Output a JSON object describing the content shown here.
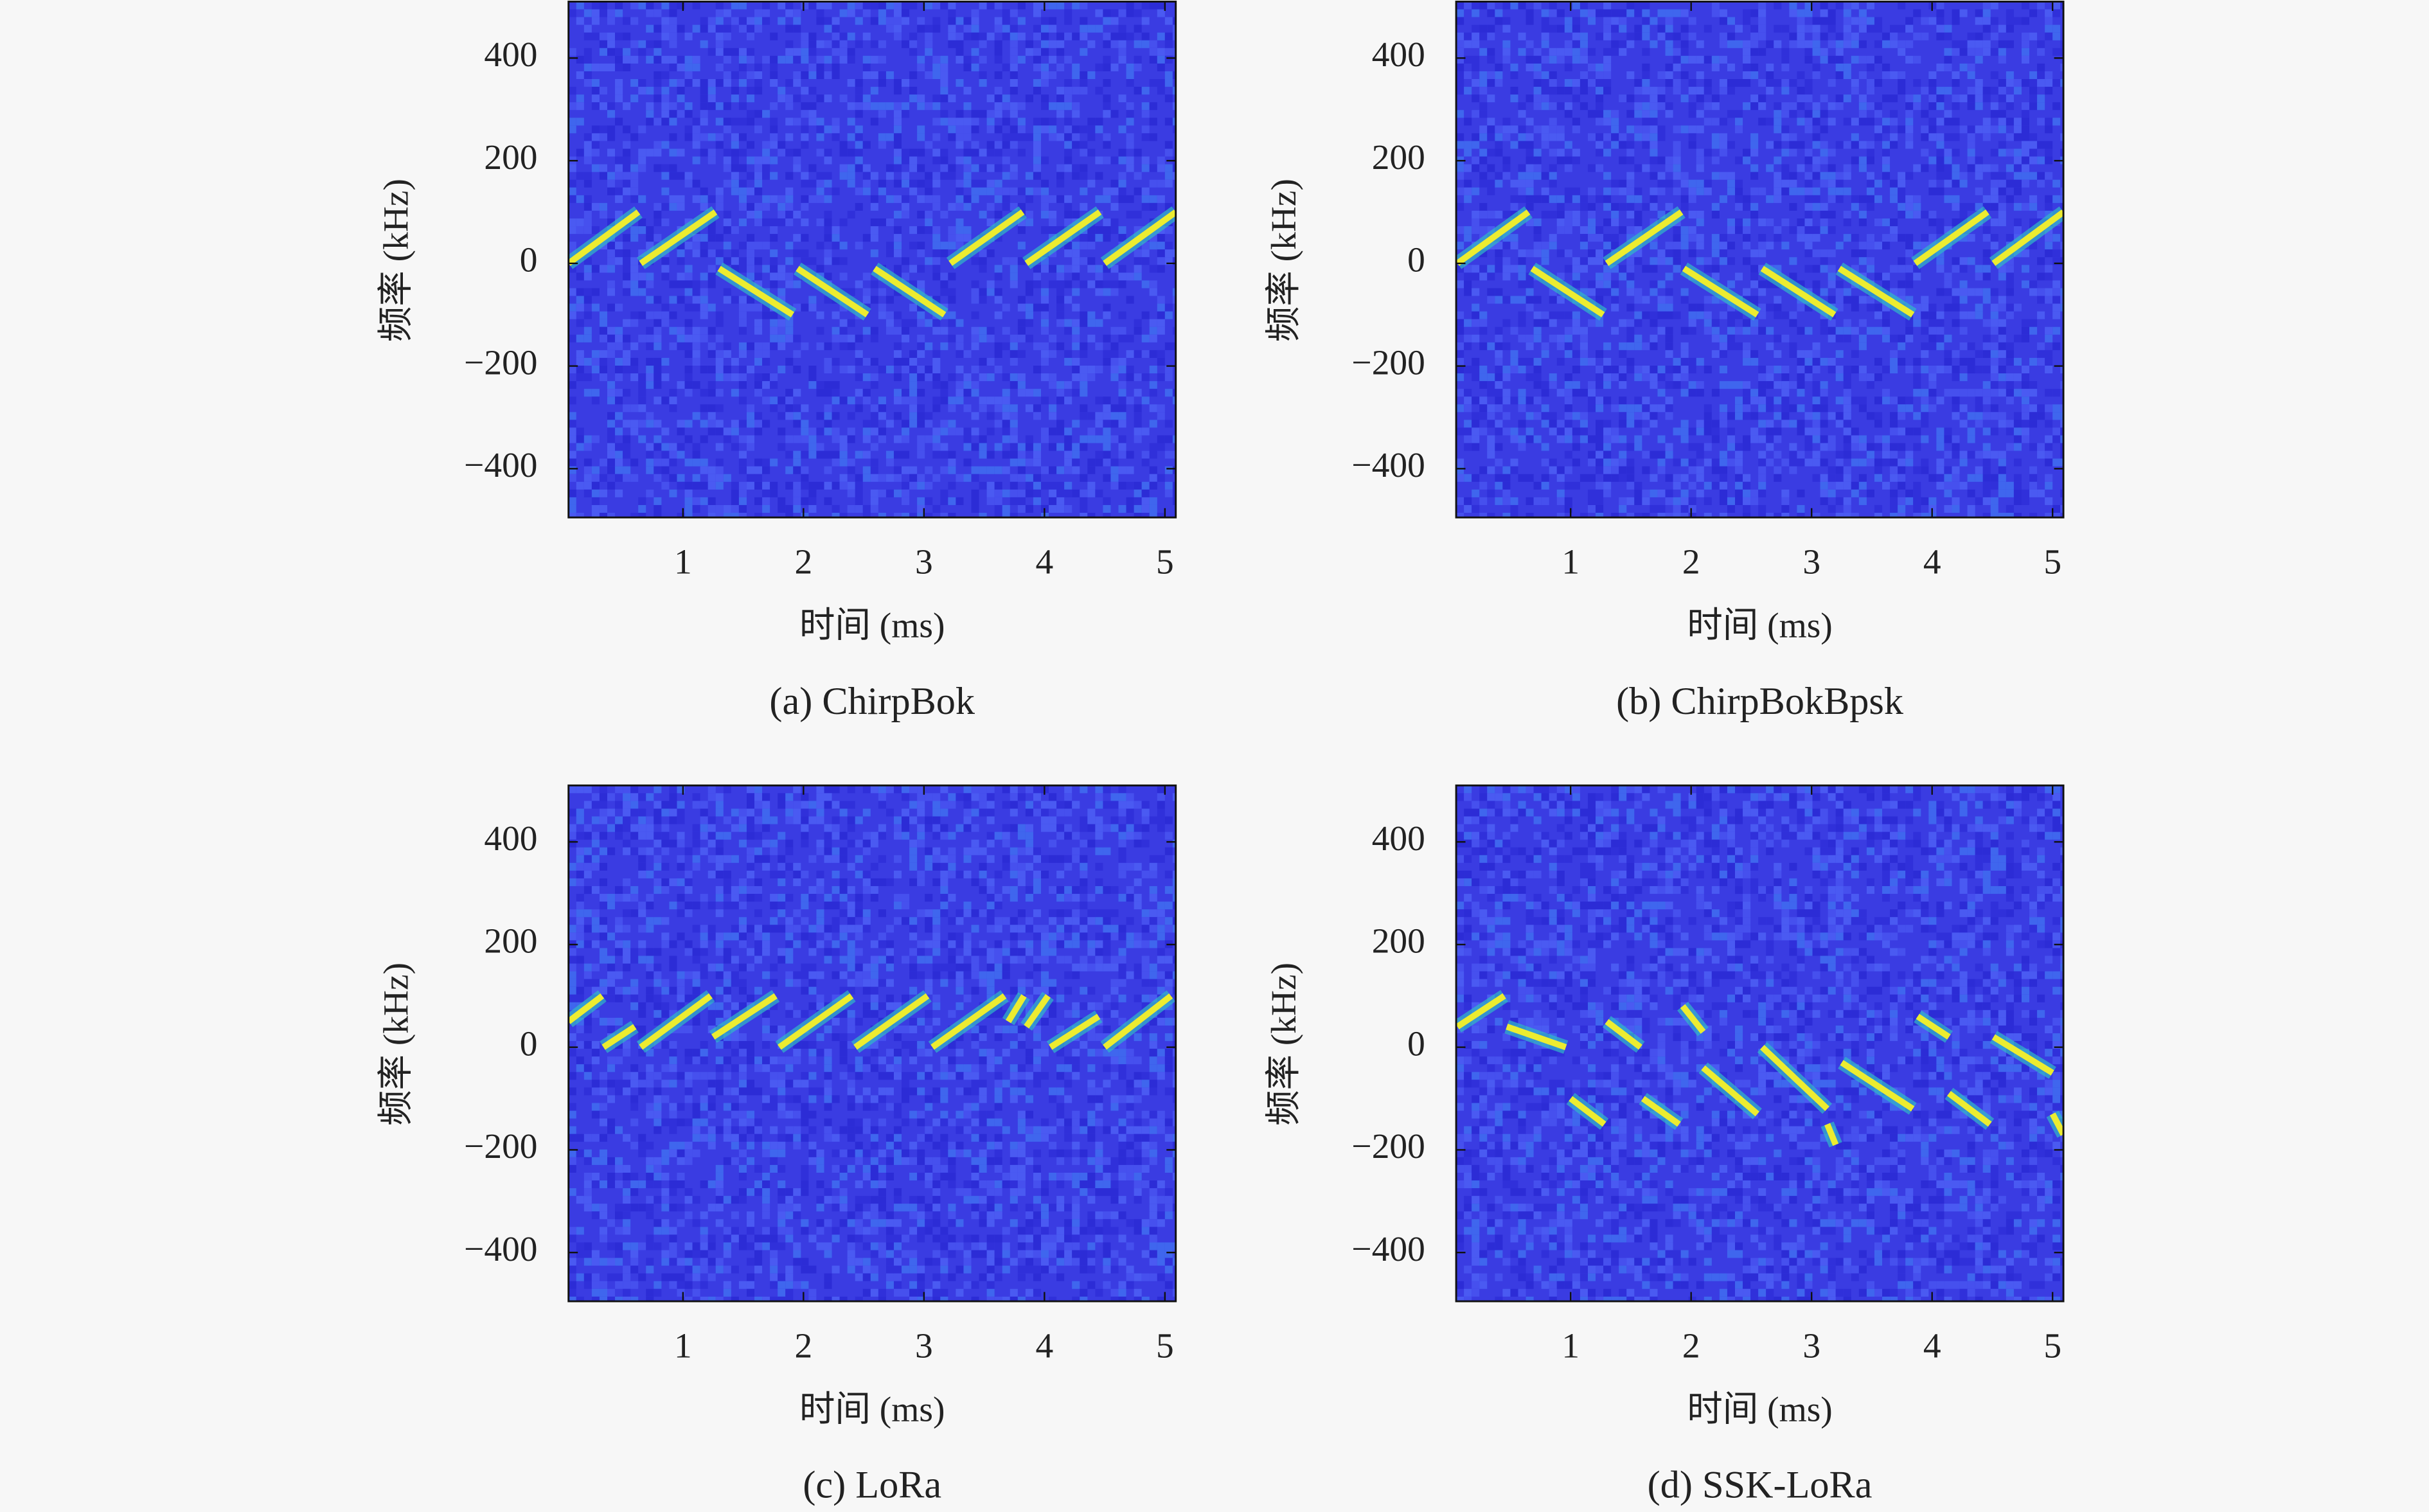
{
  "chart_data": [
    {
      "type": "spectrogram",
      "title": "(a) ChirpBok",
      "xlabel": "时间 (ms)",
      "ylabel": "频率 (kHz)",
      "xlim": [
        0.05,
        5.09
      ],
      "ylim": [
        -495,
        510
      ],
      "xticks": [
        1,
        2,
        3,
        4,
        5
      ],
      "yticks": [
        {
          "value": -400,
          "label": "−400"
        },
        {
          "value": -200,
          "label": "−200"
        },
        0,
        200,
        400
      ],
      "series": [
        {
          "color": "#ecec30",
          "x": [
            0.05,
            0.63,
            null,
            0.65,
            1.27,
            null,
            1.3,
            1.91,
            null,
            1.95,
            2.53,
            null,
            2.59,
            3.17,
            null,
            3.22,
            3.82,
            null,
            3.85,
            4.46,
            null,
            4.5,
            5.09
          ],
          "values": [
            0,
            100,
            null,
            0,
            100,
            null,
            -10,
            -100,
            null,
            -10,
            -100,
            null,
            -10,
            -100,
            null,
            0,
            100,
            null,
            0,
            100,
            null,
            0,
            100
          ]
        }
      ]
    },
    {
      "type": "spectrogram",
      "title": "(b) ChirpBokBpsk",
      "xlabel": "时间 (ms)",
      "ylabel": "频率 (kHz)",
      "xlim": [
        0.05,
        5.09
      ],
      "ylim": [
        -495,
        510
      ],
      "xticks": [
        1,
        2,
        3,
        4,
        5
      ],
      "yticks": [
        {
          "value": -400,
          "label": "−400"
        },
        {
          "value": -200,
          "label": "−200"
        },
        0,
        200,
        400
      ],
      "series": [
        {
          "color": "#ecec30",
          "x": [
            0.06,
            0.65,
            null,
            0.68,
            1.27,
            null,
            1.3,
            1.92,
            null,
            1.94,
            2.55,
            null,
            2.59,
            3.19,
            null,
            3.23,
            3.84,
            null,
            3.86,
            4.46,
            null,
            4.51,
            5.09
          ],
          "values": [
            0,
            100,
            null,
            -10,
            -100,
            null,
            0,
            100,
            null,
            -10,
            -100,
            null,
            -10,
            -100,
            null,
            -10,
            -100,
            null,
            0,
            100,
            null,
            0,
            100
          ]
        }
      ]
    },
    {
      "type": "spectrogram",
      "title": "(c) LoRa",
      "xlabel": "时间 (ms)",
      "ylabel": "频率 (kHz)",
      "xlim": [
        0.05,
        5.09
      ],
      "ylim": [
        -495,
        510
      ],
      "xticks": [
        1,
        2,
        3,
        4,
        5
      ],
      "yticks": [
        {
          "value": -400,
          "label": "−400"
        },
        {
          "value": -200,
          "label": "−200"
        },
        0,
        200,
        400
      ],
      "series": [
        {
          "color": "#ecec30",
          "x": [
            0.05,
            0.33,
            null,
            0.34,
            0.6,
            null,
            0.65,
            1.23,
            null,
            1.25,
            1.77,
            null,
            1.8,
            2.4,
            null,
            2.43,
            3.03,
            null,
            3.07,
            3.67,
            null,
            3.7,
            3.83,
            null,
            3.85,
            4.03,
            null,
            4.05,
            4.45,
            null,
            4.5,
            5.05
          ],
          "values": [
            50,
            100,
            null,
            0,
            40,
            null,
            0,
            100,
            null,
            20,
            100,
            null,
            0,
            100,
            null,
            0,
            100,
            null,
            0,
            100,
            null,
            50,
            100,
            null,
            40,
            100,
            null,
            0,
            60,
            null,
            0,
            100
          ]
        }
      ]
    },
    {
      "type": "spectrogram",
      "title": "(d) SSK-LoRa",
      "xlabel": "时间 (ms)",
      "ylabel": "频率 (kHz)",
      "xlim": [
        0.05,
        5.09
      ],
      "ylim": [
        -495,
        510
      ],
      "xticks": [
        1,
        2,
        3,
        4,
        5
      ],
      "yticks": [
        {
          "value": -400,
          "label": "−400"
        },
        {
          "value": -200,
          "label": "−200"
        },
        0,
        200,
        400
      ],
      "series": [
        {
          "color": "#ecec30",
          "x": [
            0.06,
            0.45,
            null,
            0.47,
            0.96,
            null,
            1.0,
            1.28,
            null,
            1.3,
            1.58,
            null,
            1.6,
            1.9,
            null,
            1.93,
            2.1,
            null,
            2.1,
            2.55,
            null,
            2.59,
            3.13,
            null,
            3.13,
            3.2,
            null,
            3.25,
            3.84,
            null,
            3.88,
            4.14,
            null,
            4.14,
            4.48,
            null,
            4.51,
            5.0,
            null,
            5.0,
            5.09
          ],
          "values": [
            40,
            100,
            null,
            40,
            0,
            null,
            -100,
            -150,
            null,
            50,
            0,
            null,
            -100,
            -150,
            null,
            80,
            30,
            null,
            -40,
            -130,
            null,
            0,
            -120,
            null,
            -150,
            -190,
            null,
            -30,
            -120,
            null,
            60,
            20,
            null,
            -90,
            -150,
            null,
            20,
            -50,
            null,
            -130,
            -170
          ]
        }
      ]
    }
  ]
}
